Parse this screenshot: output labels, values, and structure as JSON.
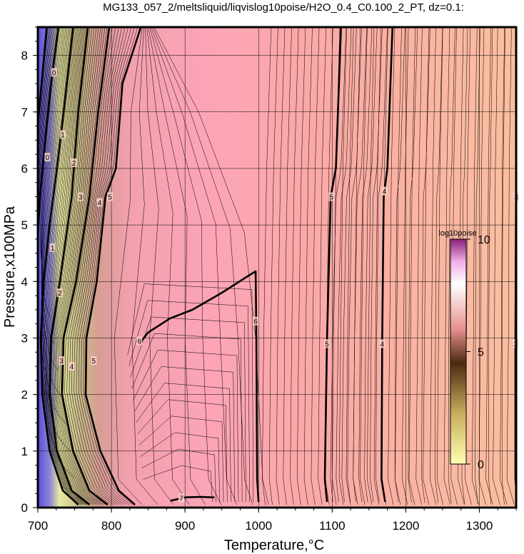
{
  "chart_data": {
    "type": "contour",
    "title": "MG133_057_2/meltsliquid/liqvislog10poise/H2O_0.4_C0.100_2_PT, dz=0.1:",
    "xlabel": "Temperature,°C",
    "ylabel": "Pressure,x100MPa",
    "xlim": [
      700,
      1350
    ],
    "ylim": [
      0,
      8.5
    ],
    "x_ticks": [
      700,
      800,
      900,
      1000,
      1100,
      1200,
      1300
    ],
    "y_ticks": [
      0,
      1,
      2,
      3,
      4,
      5,
      6,
      7,
      8
    ],
    "grid": true,
    "contour_interval": 0.1,
    "colorbar": {
      "title": "log10poise",
      "range": [
        0,
        10
      ],
      "ticks": [
        0,
        5,
        10
      ],
      "placement": "right-inside"
    },
    "contours": [
      {
        "level": 3,
        "points": [
          [
            1352,
            8.5
          ],
          [
            1350,
            6.0
          ],
          [
            1349,
            3.0
          ],
          [
            1349,
            0.5
          ],
          [
            1352,
            0.05
          ]
        ],
        "labels": [
          [
            1350,
            5.5,
            "3"
          ],
          [
            1349,
            2.9,
            "3"
          ]
        ]
      },
      {
        "level": 4,
        "points": [
          [
            1182,
            8.5
          ],
          [
            1175,
            6.0
          ],
          [
            1170,
            5.5
          ],
          [
            1168,
            3.0
          ],
          [
            1167,
            0.5
          ],
          [
            1172,
            0.1
          ]
        ],
        "labels": [
          [
            1171,
            5.6,
            "4"
          ],
          [
            1168,
            2.9,
            "4"
          ]
        ]
      },
      {
        "level": 5,
        "points": [
          [
            1112,
            8.5
          ],
          [
            1105,
            6.0
          ],
          [
            1098,
            5.5
          ],
          [
            1093,
            3.0
          ],
          [
            1090,
            0.5
          ],
          [
            1093,
            0.1
          ]
        ],
        "labels": [
          [
            1099,
            5.5,
            "5"
          ],
          [
            1093,
            2.9,
            "5"
          ]
        ]
      },
      {
        "level": 6,
        "points": [
          [
            838,
            2.9
          ],
          [
            850,
            3.1
          ],
          [
            880,
            3.35
          ],
          [
            910,
            3.5
          ],
          [
            950,
            3.8
          ],
          [
            980,
            4.05
          ],
          [
            996,
            4.18
          ],
          [
            997,
            3.0
          ],
          [
            998,
            0.5
          ],
          [
            1000,
            0.1
          ]
        ],
        "labels": [
          [
            838,
            2.95,
            "6"
          ],
          [
            996,
            3.3,
            "6"
          ]
        ]
      },
      {
        "level": 7,
        "points": [
          [
            880,
            0.12
          ],
          [
            900,
            0.18
          ],
          [
            920,
            0.19
          ],
          [
            940,
            0.18
          ]
        ],
        "labels": [
          [
            895,
            0.17,
            "7"
          ]
        ]
      },
      {
        "level": 5,
        "points": [
          [
            840,
            8.5
          ],
          [
            815,
            7.5
          ],
          [
            806,
            6.0
          ],
          [
            792,
            5.5
          ],
          [
            780,
            4.0
          ],
          [
            766,
            3.0
          ],
          [
            765,
            2.0
          ],
          [
            785,
            1.0
          ],
          [
            810,
            0.3
          ],
          [
            832,
            0.05
          ]
        ],
        "labels": [
          [
            798,
            5.5,
            "5"
          ],
          [
            776,
            2.6,
            "5"
          ]
        ]
      },
      {
        "level": 4,
        "points": [
          [
            797,
            8.5
          ],
          [
            782,
            7.0
          ],
          [
            770,
            5.5
          ],
          [
            752,
            4.0
          ],
          [
            735,
            3.0
          ],
          [
            733,
            2.0
          ],
          [
            748,
            1.0
          ],
          [
            770,
            0.3
          ],
          [
            795,
            0.05
          ]
        ],
        "labels": [
          [
            784,
            5.4,
            "4"
          ],
          [
            746,
            2.5,
            "4"
          ]
        ]
      },
      {
        "level": 3,
        "points": [
          [
            768,
            8.5
          ],
          [
            755,
            7.0
          ],
          [
            746,
            5.5
          ],
          [
            730,
            4.0
          ],
          [
            718,
            3.0
          ],
          [
            716,
            2.0
          ],
          [
            726,
            1.0
          ],
          [
            746,
            0.3
          ],
          [
            770,
            0.05
          ]
        ],
        "labels": [
          [
            758,
            5.5,
            "3"
          ],
          [
            732,
            2.6,
            "3"
          ]
        ]
      },
      {
        "level": 2,
        "points": [
          [
            748,
            8.5
          ],
          [
            735,
            7.0
          ],
          [
            726,
            6.0
          ],
          [
            716,
            5.0
          ],
          [
            708,
            4.0
          ],
          [
            704,
            3.0
          ],
          [
            706,
            2.0
          ],
          [
            716,
            1.0
          ],
          [
            734,
            0.3
          ],
          [
            755,
            0.05
          ]
        ],
        "labels": [
          [
            749,
            6.1,
            "2"
          ],
          [
            730,
            3.8,
            "2"
          ]
        ]
      },
      {
        "level": 1,
        "points": [
          [
            728,
            8.5
          ],
          [
            718,
            7.5
          ],
          [
            710,
            6.5
          ],
          [
            703,
            5.5
          ],
          [
            700,
            4.8
          ]
        ],
        "labels": [
          [
            734,
            6.6,
            "1"
          ],
          [
            720,
            4.6,
            "1"
          ]
        ]
      },
      {
        "level": 0,
        "points": [
          [
            712,
            8.5
          ],
          [
            705,
            7.5
          ],
          [
            700,
            6.8
          ]
        ],
        "labels": [
          [
            722,
            7.7,
            "0"
          ],
          [
            713,
            6.2,
            "0"
          ]
        ]
      }
    ]
  }
}
